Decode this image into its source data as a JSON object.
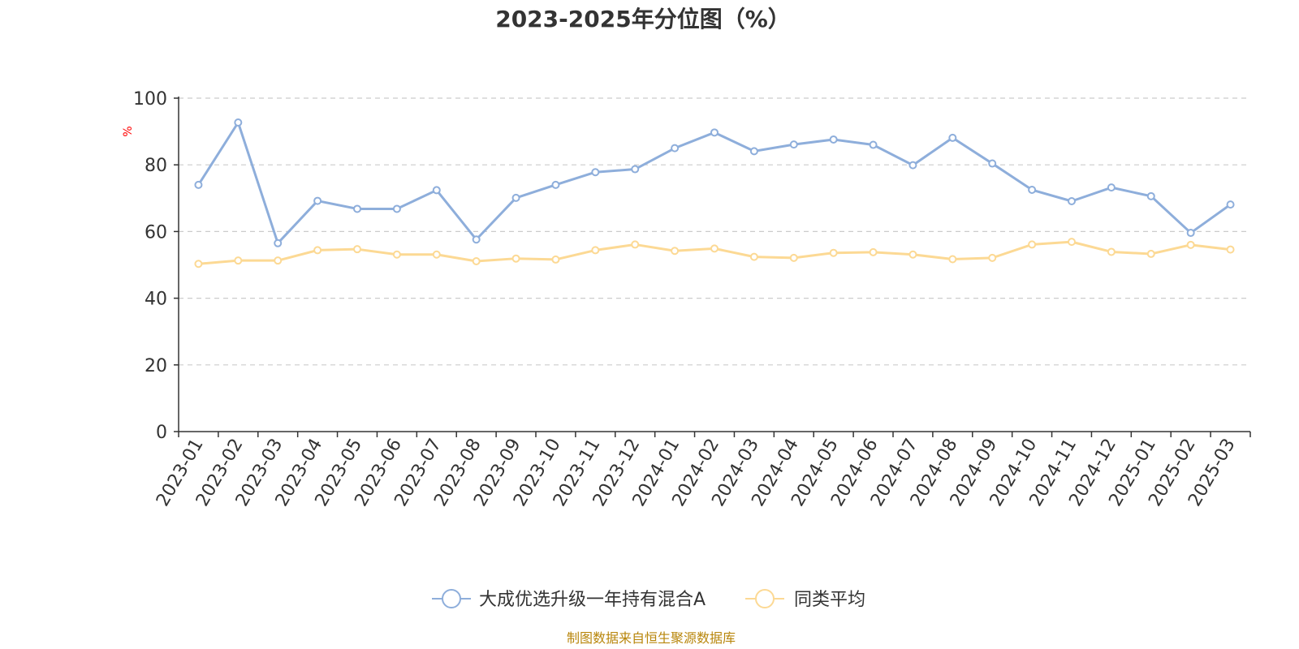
{
  "chart_data": {
    "type": "line",
    "title": "2023-2025年分位图（%）",
    "unit_label": "%",
    "source": "制图数据来自恒生聚源数据库",
    "categories": [
      "2023-01",
      "2023-02",
      "2023-03",
      "2023-04",
      "2023-05",
      "2023-06",
      "2023-07",
      "2023-08",
      "2023-09",
      "2023-10",
      "2023-11",
      "2023-12",
      "2024-01",
      "2024-02",
      "2024-03",
      "2024-04",
      "2024-05",
      "2024-06",
      "2024-07",
      "2024-08",
      "2024-09",
      "2024-10",
      "2024-11",
      "2024-12",
      "2025-01",
      "2025-02",
      "2025-03"
    ],
    "ylim": [
      0,
      100
    ],
    "yticks": [
      "0",
      "20",
      "40",
      "60",
      "80",
      "100"
    ],
    "grid": true,
    "legend_position": "bottom",
    "series": [
      {
        "name": "大成优选升级一年持有混合A",
        "color": "#8eaedb",
        "values": [
          74.0,
          92.7,
          56.5,
          69.2,
          66.8,
          66.8,
          72.4,
          57.6,
          70.1,
          74.0,
          77.8,
          78.7,
          85.0,
          89.7,
          84.1,
          86.1,
          87.6,
          86.0,
          79.9,
          88.1,
          80.4,
          72.5,
          69.1,
          73.2,
          70.6,
          59.6,
          68.1
        ]
      },
      {
        "name": "同类平均",
        "color": "#fcd994",
        "values": [
          50.3,
          51.3,
          51.3,
          54.4,
          54.7,
          53.1,
          53.1,
          51.1,
          51.9,
          51.6,
          54.4,
          56.1,
          54.2,
          54.9,
          52.4,
          52.1,
          53.6,
          53.8,
          53.1,
          51.7,
          52.1,
          56.1,
          56.9,
          53.9,
          53.3,
          56.0,
          54.6
        ]
      }
    ]
  }
}
